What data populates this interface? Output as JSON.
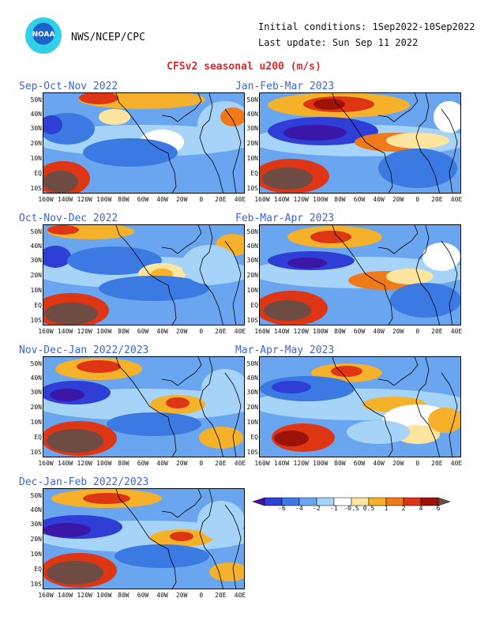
{
  "header": {
    "logo_text": "NOAA",
    "org": "NWS/NCEP/CPC",
    "initial_conditions": "Initial conditions: 1Sep2022-10Sep2022",
    "last_update": "Last update: Sun Sep 11 2022",
    "title": "CFSv2 seasonal u200 (m/s)"
  },
  "axes": {
    "lat_labels": [
      "50N",
      "40N",
      "30N",
      "20N",
      "10N",
      "EQ",
      "10S"
    ],
    "lon_labels": [
      "160W",
      "140W",
      "120W",
      "100W",
      "80W",
      "60W",
      "40W",
      "20W",
      "0",
      "20E",
      "40E"
    ]
  },
  "panels": [
    {
      "title": "Sep-Oct-Nov 2022"
    },
    {
      "title": "Jan-Feb-Mar 2023"
    },
    {
      "title": "Oct-Nov-Dec 2022"
    },
    {
      "title": "Feb-Mar-Apr 2023"
    },
    {
      "title": "Nov-Dec-Jan 2022/2023"
    },
    {
      "title": "Mar-Apr-May 2023"
    },
    {
      "title": "Dec-Jan-Feb 2022/2023"
    }
  ],
  "colorbar": {
    "labels": [
      "-6",
      "-4",
      "-2",
      "-1",
      "-0.5",
      "0.5",
      "1",
      "2",
      "4",
      "6"
    ],
    "colors": [
      "#3b17a8",
      "#2f3ed6",
      "#3a7ae2",
      "#6aa6ef",
      "#a6d3f8",
      "#ffffff",
      "#fde5a0",
      "#f5b12a",
      "#f07a1a",
      "#de3515",
      "#9c1208",
      "#6e4c44"
    ]
  }
}
